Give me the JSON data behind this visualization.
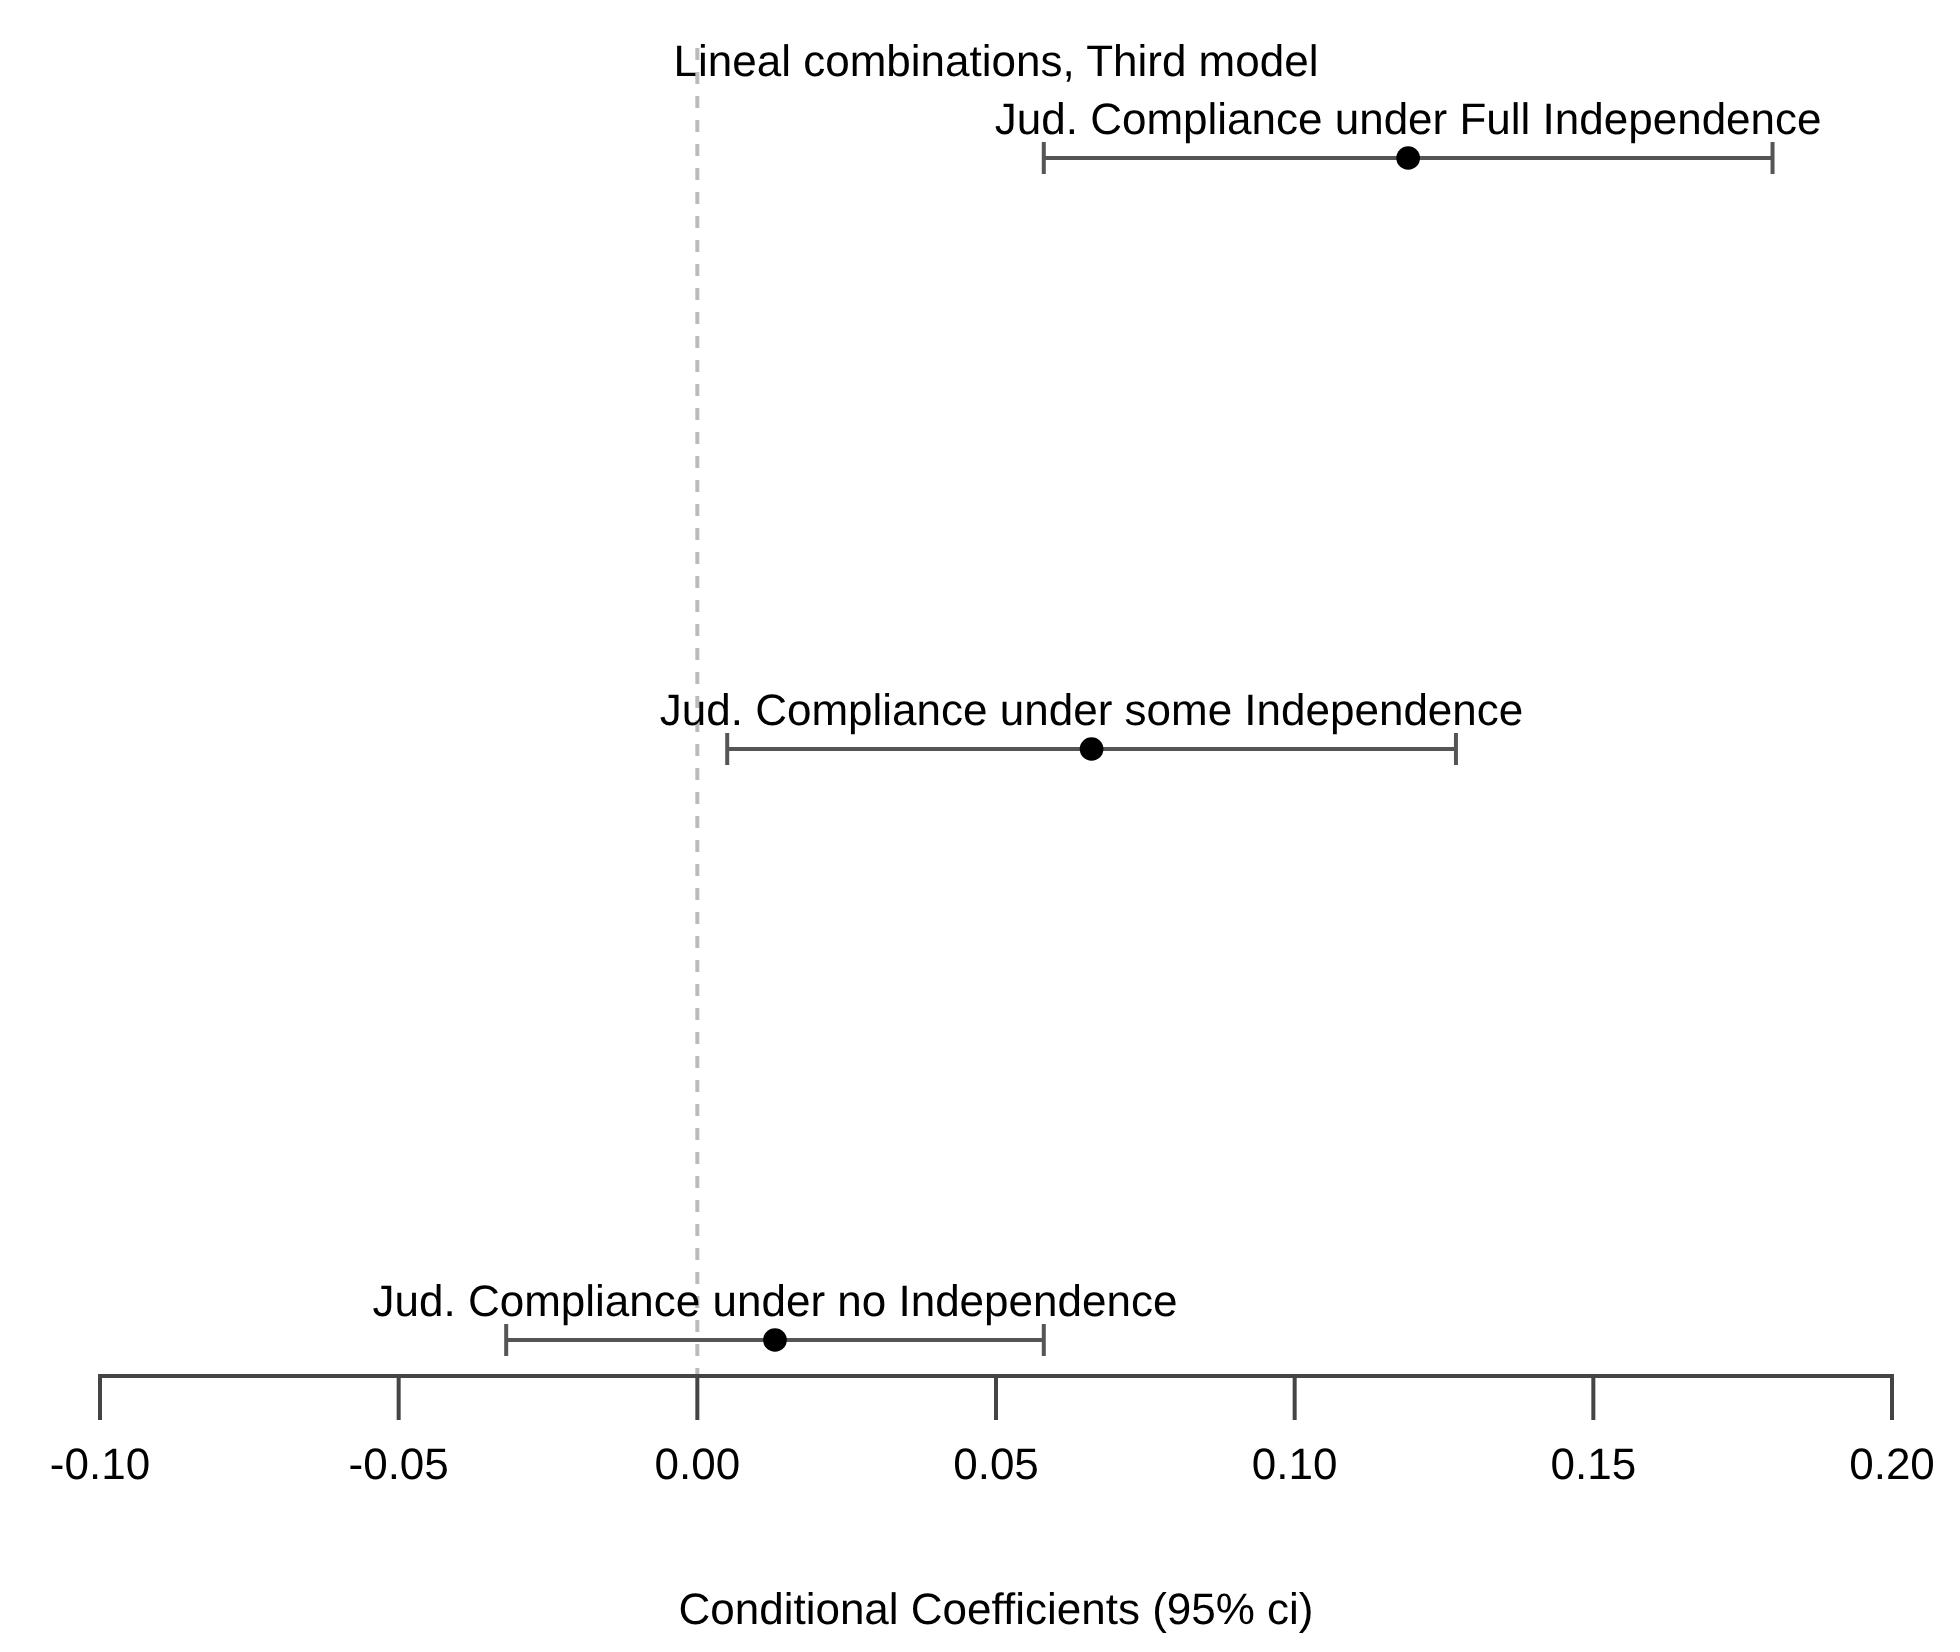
{
  "chart_data": {
    "type": "scatter",
    "orientation": "horizontal",
    "title": "Lineal combinations, Third model",
    "xlabel": "Conditional Coefficients (95% ci)",
    "categories": [
      "Jud. Compliance under Full Independence",
      "Jud. Compliance under some Independence",
      "Jud. Compliance under no Independence"
    ],
    "values": [
      0.119,
      0.066,
      0.013
    ],
    "errors": [
      [
        0.058,
        0.18
      ],
      [
        0.005,
        0.127
      ],
      [
        -0.032,
        0.058
      ]
    ],
    "color": "#000000",
    "marker": "circle",
    "xlim": [
      -0.1,
      0.2
    ],
    "xticks": [
      {
        "value": -0.1,
        "label": "-0.10"
      },
      {
        "value": -0.05,
        "label": "-0.05"
      },
      {
        "value": 0,
        "label": "0.00"
      },
      {
        "value": 0.05,
        "label": "0.05"
      },
      {
        "value": 0.1,
        "label": "0.10"
      },
      {
        "value": 0.15,
        "label": "0.15"
      },
      {
        "value": 0.2,
        "label": "0.20"
      }
    ],
    "ref_lines": [
      {
        "axis": "x",
        "value": 0,
        "color": "#bbbbbb",
        "line_style": "dashed"
      }
    ]
  }
}
